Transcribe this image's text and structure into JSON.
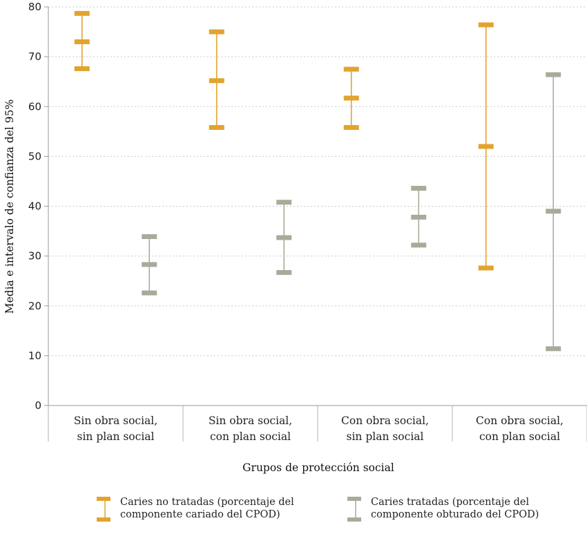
{
  "chart_data": {
    "type": "errorbar",
    "ylabel": "Media e intervalo de confianza del 95%",
    "xlabel": "Grupos de protección social",
    "ylim": [
      0,
      80
    ],
    "yticks": [
      0,
      10,
      20,
      30,
      40,
      50,
      60,
      70,
      80
    ],
    "grid": "horizontal-dotted",
    "categories": [
      "Sin obra social,\nsin plan social",
      "Sin obra social,\ncon plan social",
      "Con obra social,\nsin plan social",
      "Con obra social,\ncon plan social"
    ],
    "series": [
      {
        "name": "Caries no tratadas (porcentaje del\ncomponente cariado del CPOD)",
        "color": "#e2a32f",
        "mean": [
          73.0,
          65.2,
          61.7,
          52.0
        ],
        "lower": [
          67.6,
          55.8,
          55.8,
          27.6
        ],
        "upper": [
          78.7,
          75.0,
          67.5,
          76.4
        ]
      },
      {
        "name": "Caries tratadas (porcentaje del\ncomponente obturado del CPOD)",
        "color": "#a8ab9a",
        "mean": [
          28.3,
          33.7,
          37.8,
          39.0
        ],
        "lower": [
          22.6,
          26.7,
          32.2,
          11.4
        ],
        "upper": [
          33.9,
          40.8,
          43.6,
          66.4
        ]
      }
    ],
    "legend_position": "bottom"
  }
}
